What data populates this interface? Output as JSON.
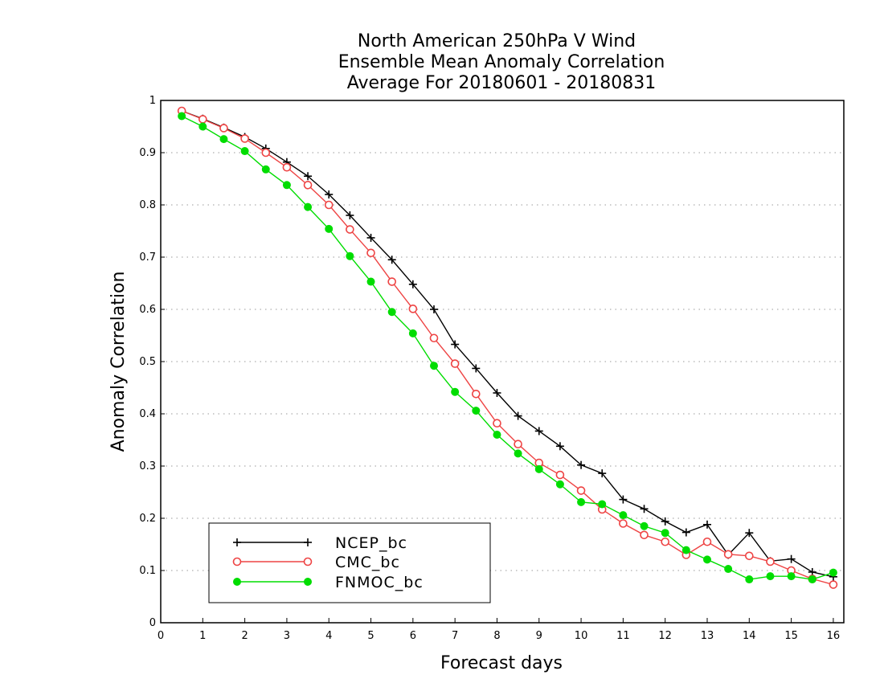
{
  "chart_data": {
    "type": "line",
    "title_lines": [
      "North American 250hPa V Wind",
      "Ensemble Mean Anomaly Correlation",
      "Average For 20180601 - 20180831"
    ],
    "xlabel": "Forecast days",
    "ylabel": "Anomaly Correlation",
    "xlim": [
      0,
      16.25
    ],
    "ylim": [
      0,
      1
    ],
    "xticks": [
      "0",
      "1",
      "2",
      "3",
      "4",
      "5",
      "6",
      "7",
      "8",
      "9",
      "10",
      "11",
      "12",
      "13",
      "14",
      "15",
      "16"
    ],
    "yticks": [
      "0",
      "0.1",
      "0.2",
      "0.3",
      "0.4",
      "0.5",
      "0.6",
      "0.7",
      "0.8",
      "0.9",
      "1"
    ],
    "grid": "horizontal dotted",
    "legend_position": "bottom-left",
    "x": [
      0.5,
      1,
      1.5,
      2,
      2.5,
      3,
      3.5,
      4,
      4.5,
      5,
      5.5,
      6,
      6.5,
      7,
      7.5,
      8,
      8.5,
      9,
      9.5,
      10,
      10.5,
      11,
      11.5,
      12,
      12.5,
      13,
      13.5,
      14,
      14.5,
      15,
      15.5,
      16
    ],
    "series": [
      {
        "name": "NCEP_bc",
        "color": "#000000",
        "marker": "plus",
        "values": [
          0.98,
          0.965,
          0.948,
          0.93,
          0.908,
          0.882,
          0.855,
          0.82,
          0.78,
          0.737,
          0.695,
          0.648,
          0.6,
          0.533,
          0.487,
          0.44,
          0.396,
          0.367,
          0.338,
          0.302,
          0.286,
          0.236,
          0.218,
          0.194,
          0.173,
          0.188,
          0.13,
          0.172,
          0.118,
          0.122,
          0.097,
          0.088
        ]
      },
      {
        "name": "CMC_bc",
        "color": "#ee4444",
        "marker": "open-circle",
        "values": [
          0.98,
          0.964,
          0.947,
          0.927,
          0.9,
          0.872,
          0.838,
          0.8,
          0.753,
          0.708,
          0.653,
          0.601,
          0.545,
          0.496,
          0.438,
          0.382,
          0.342,
          0.306,
          0.283,
          0.253,
          0.217,
          0.19,
          0.168,
          0.155,
          0.13,
          0.155,
          0.131,
          0.128,
          0.117,
          0.1,
          0.084,
          0.073
        ]
      },
      {
        "name": "FNMOC_bc",
        "color": "#00dd00",
        "marker": "filled-circle",
        "values": [
          0.97,
          0.95,
          0.926,
          0.903,
          0.868,
          0.838,
          0.796,
          0.754,
          0.702,
          0.653,
          0.595,
          0.554,
          0.492,
          0.442,
          0.406,
          0.36,
          0.324,
          0.294,
          0.265,
          0.231,
          0.227,
          0.206,
          0.185,
          0.172,
          0.139,
          0.121,
          0.103,
          0.083,
          0.089,
          0.089,
          0.083,
          0.096
        ]
      }
    ]
  }
}
